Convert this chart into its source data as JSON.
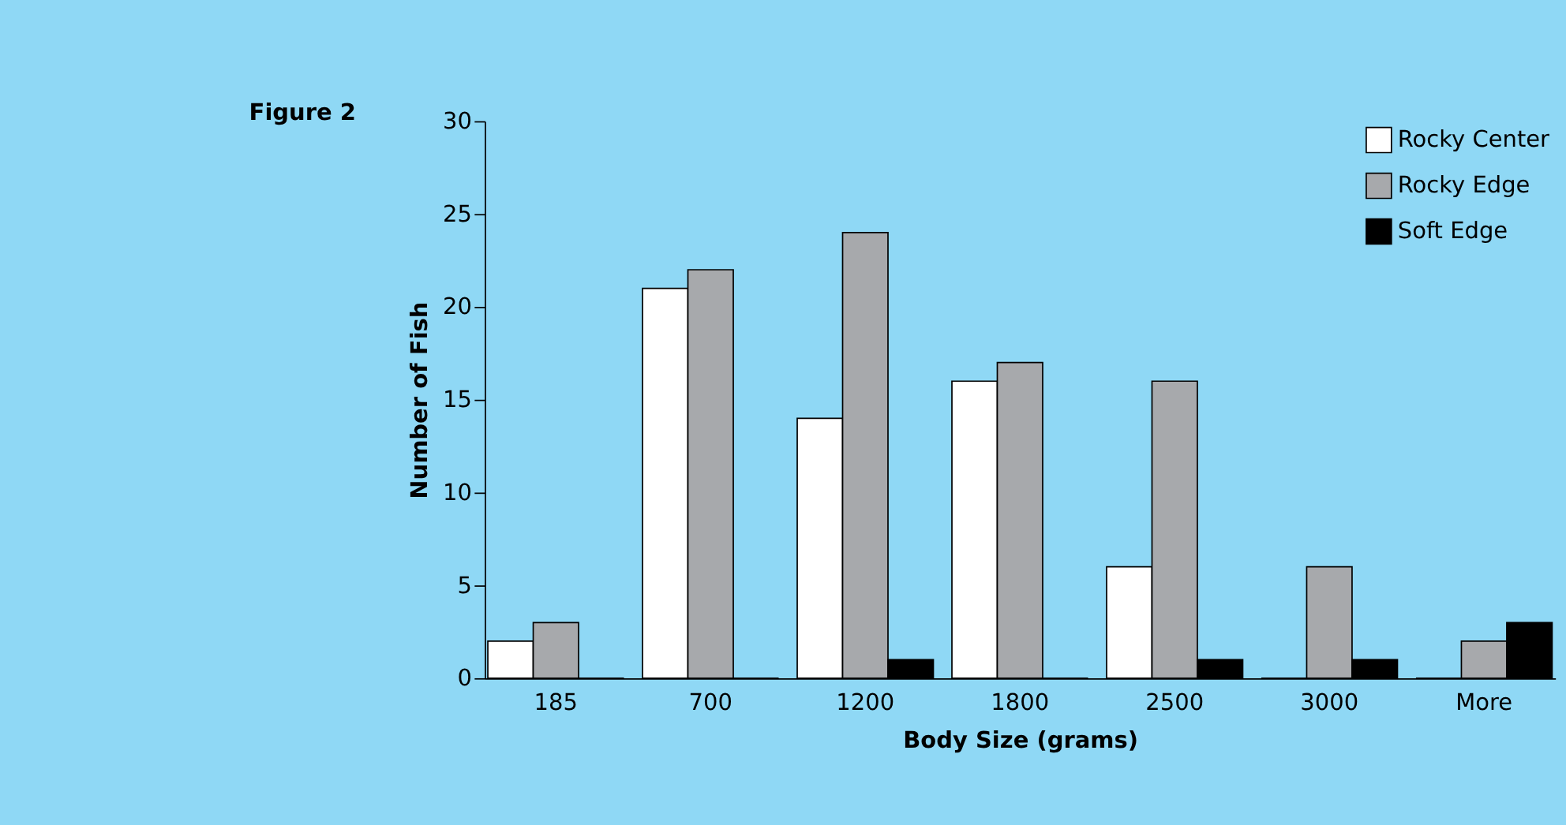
{
  "chart_data": {
    "type": "bar",
    "title": "Figure 2",
    "xlabel": "Body Size (grams)",
    "ylabel": "Number of Fish",
    "categories": [
      "185",
      "700",
      "1200",
      "1800",
      "2500",
      "3000",
      "More"
    ],
    "series": [
      {
        "name": "Rocky Center",
        "color": "#ffffff",
        "values": [
          2,
          21,
          14,
          16,
          6,
          0,
          0
        ]
      },
      {
        "name": "Rocky Edge",
        "color": "#a7a9ac",
        "values": [
          3,
          22,
          24,
          17,
          16,
          6,
          2
        ]
      },
      {
        "name": "Soft Edge",
        "color": "#000000",
        "values": [
          0,
          0,
          1,
          0,
          1,
          1,
          3
        ]
      }
    ],
    "ylim": [
      0,
      30
    ],
    "yticks": [
      0,
      5,
      10,
      15,
      20,
      25,
      30
    ],
    "grid": false,
    "legend": "top right"
  }
}
